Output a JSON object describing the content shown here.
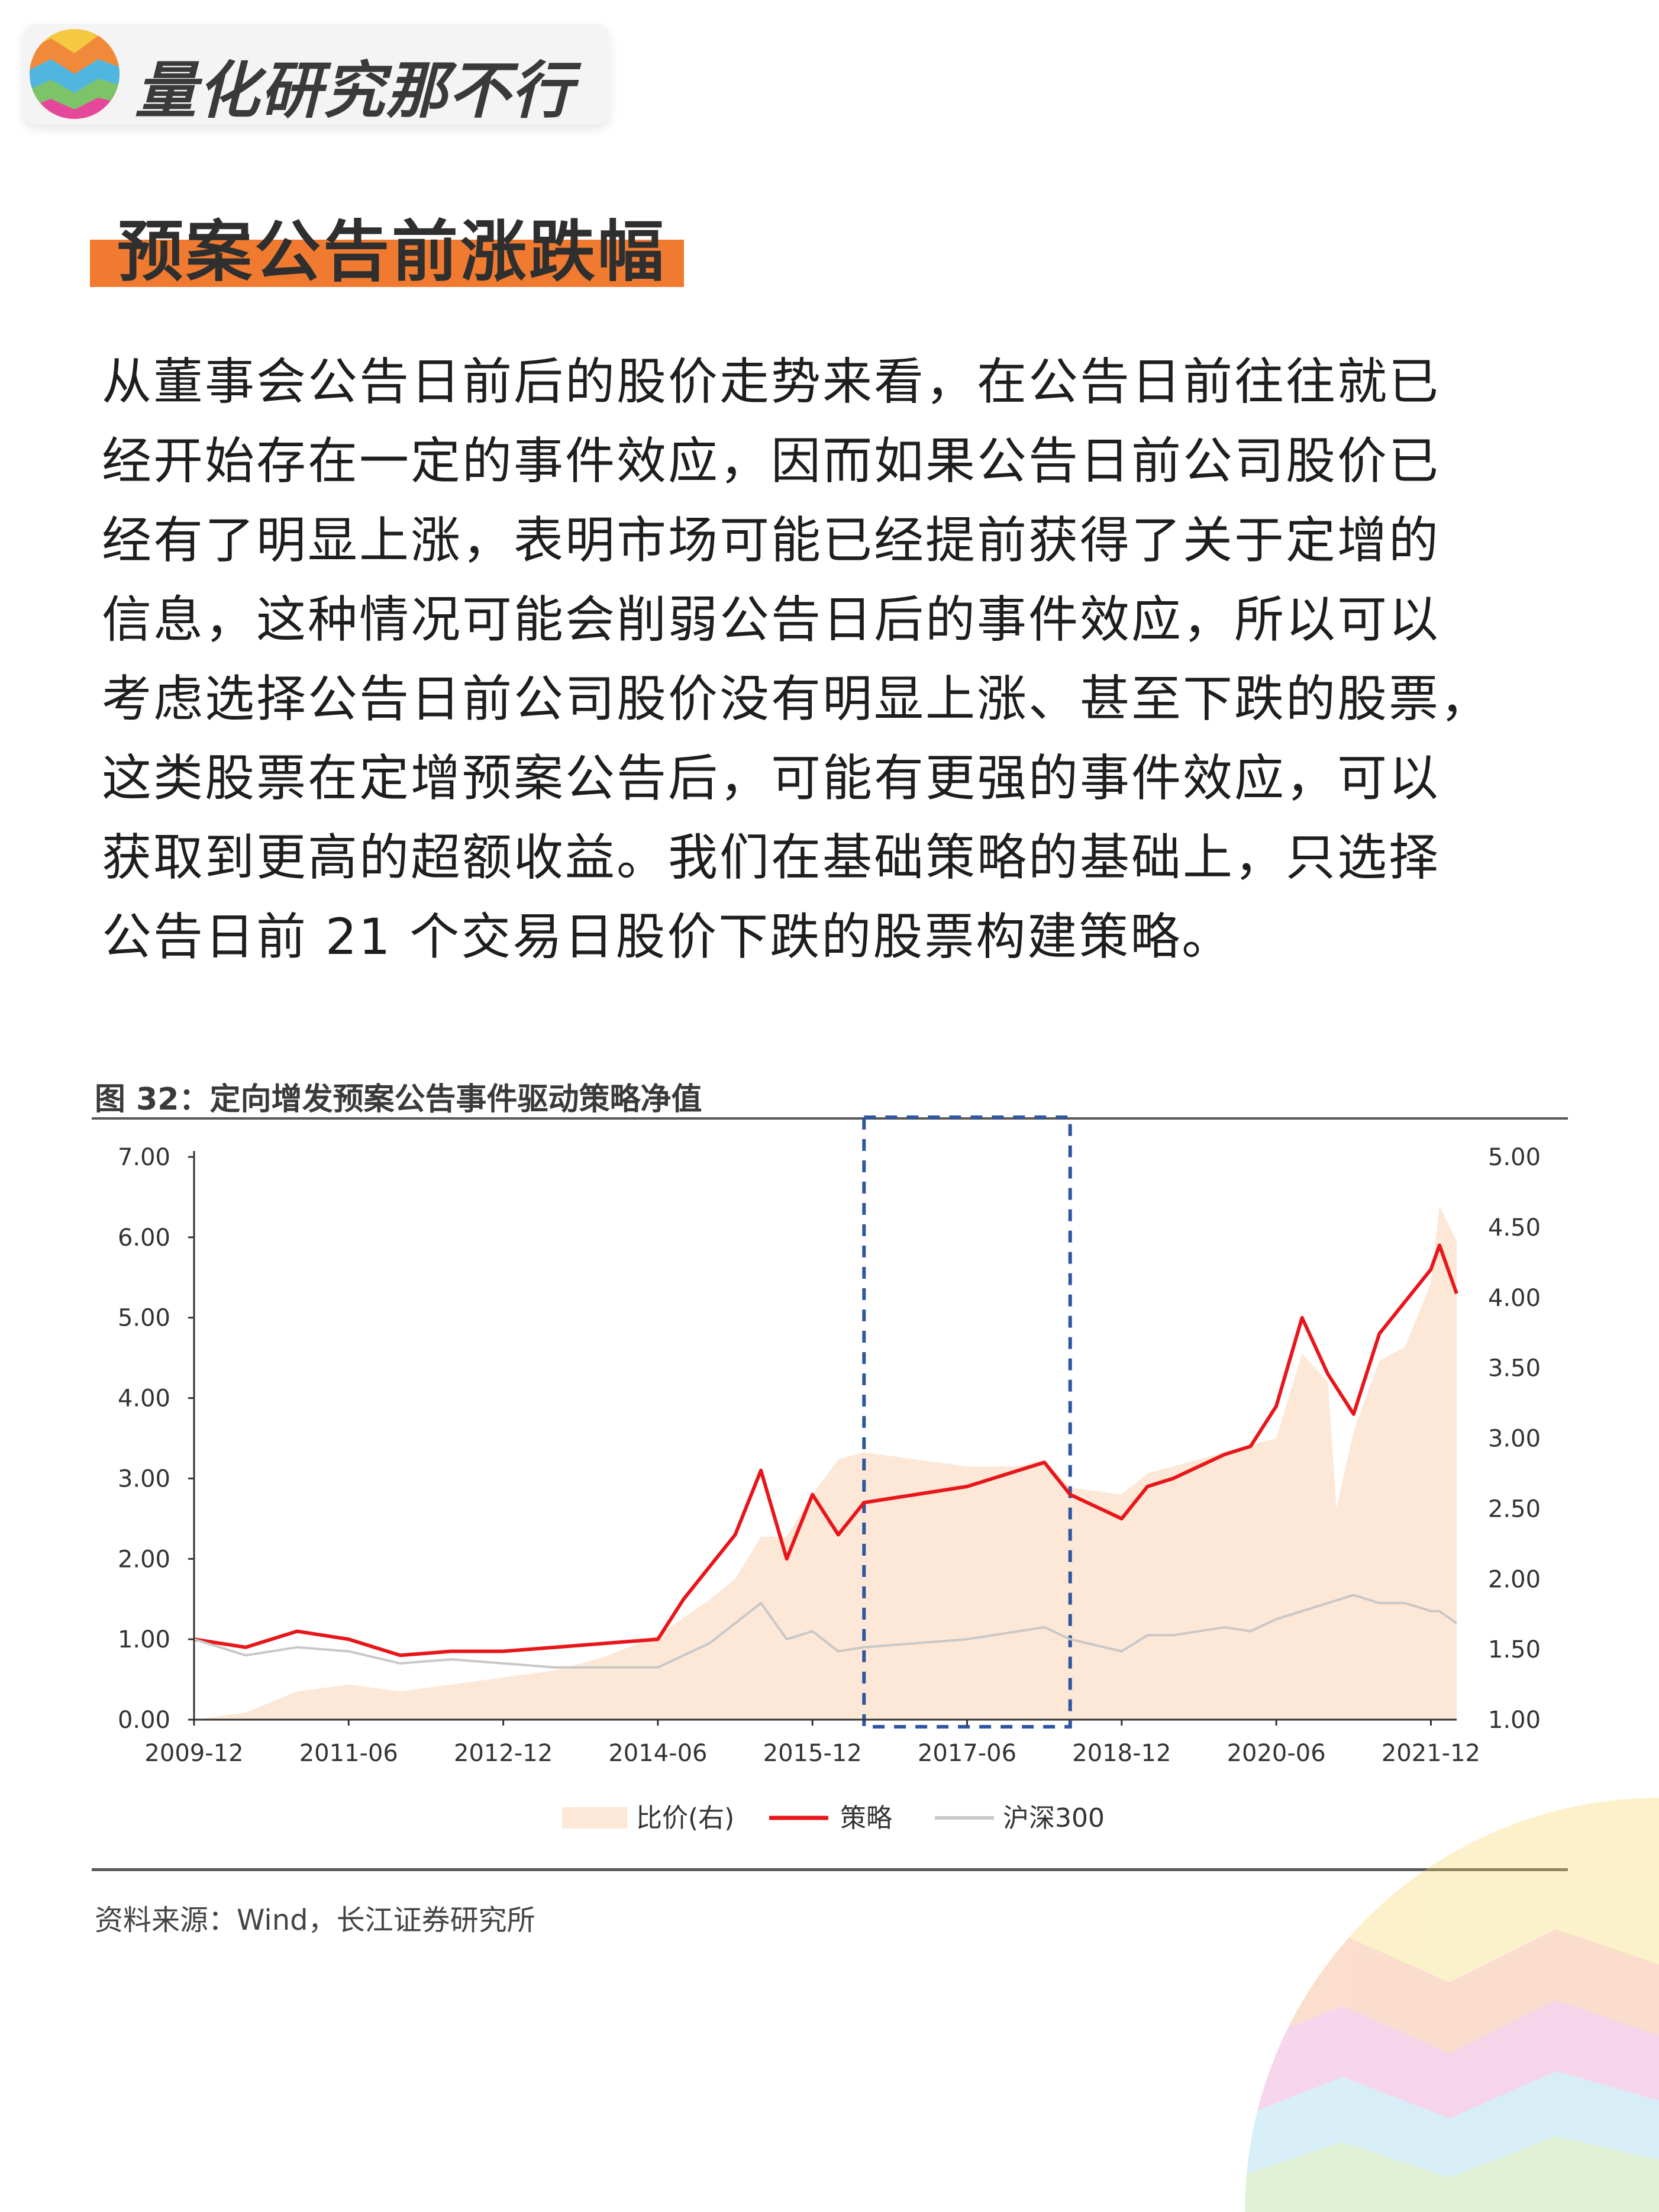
{
  "brand": {
    "name": "量化研究那不行",
    "logo_icon": "rainbow-ball-logo"
  },
  "section": {
    "title": "预案公告前涨跌幅"
  },
  "paragraph": {
    "lines": [
      "从董事会公告日前后的股价走势来看，在公告日前往往就已",
      "经开始存在一定的事件效应，因而如果公告日前公司股价已",
      "经有了明显上涨，表明市场可能已经提前获得了关于定增的",
      "信息，这种情况可能会削弱公告日后的事件效应，所以可以",
      "考虑选择公告日前公司股价没有明显上涨、甚至下跌的股票，",
      "这类股票在定增预案公告后，可能有更强的事件效应，可以",
      "获取到更高的超额收益。我们在基础策略的基础上，只选择",
      "公告日前 21 个交易日股价下跌的股票构建策略。"
    ]
  },
  "figure": {
    "title": "图 32：定向增发预案公告事件驱动策略净值",
    "source": "资料来源：Wind，长江证券研究所"
  },
  "colors": {
    "accent": "#f07a2f",
    "strategy": "#e8161a",
    "hs300": "#c8c8c8",
    "ratio_fill": "#fde7d6",
    "highlight_box": "#2f56a0"
  },
  "chart_data": {
    "type": "line",
    "title": "定向增发预案公告事件驱动策略净值",
    "x_ticks": [
      "2009-12",
      "2011-06",
      "2012-12",
      "2014-06",
      "2015-12",
      "2017-06",
      "2018-12",
      "2020-06",
      "2021-12"
    ],
    "left_axis": {
      "ticks": [
        "0.00",
        "1.00",
        "2.00",
        "3.00",
        "4.00",
        "5.00",
        "6.00",
        "7.00"
      ],
      "range": [
        0,
        7
      ]
    },
    "right_axis": {
      "ticks": [
        "1.00",
        "1.50",
        "2.00",
        "2.50",
        "3.00",
        "3.50",
        "4.00",
        "4.50",
        "5.00"
      ],
      "range": [
        1,
        5
      ]
    },
    "legend": {
      "position": "bottom",
      "items": [
        {
          "key": "ratio",
          "label": "比价(右)"
        },
        {
          "key": "strategy",
          "label": "策略"
        },
        {
          "key": "hs300",
          "label": "沪深300"
        }
      ]
    },
    "highlight_range": [
      "2016-06",
      "2018-06"
    ],
    "series": [
      {
        "name": "策略",
        "axis": "left",
        "type": "line",
        "x": [
          "2009-12",
          "2010-06",
          "2010-12",
          "2011-06",
          "2011-12",
          "2012-06",
          "2012-12",
          "2013-06",
          "2013-12",
          "2014-06",
          "2014-09",
          "2014-12",
          "2015-03",
          "2015-06",
          "2015-09",
          "2015-12",
          "2016-03",
          "2016-06",
          "2016-12",
          "2017-06",
          "2017-12",
          "2018-03",
          "2018-06",
          "2018-12",
          "2019-03",
          "2019-06",
          "2019-12",
          "2020-03",
          "2020-06",
          "2020-09",
          "2020-12",
          "2021-03",
          "2021-06",
          "2021-09",
          "2021-12",
          "2022-01",
          "2022-03"
        ],
        "y": [
          1.0,
          0.9,
          1.1,
          1.0,
          0.8,
          0.85,
          0.85,
          0.9,
          0.95,
          1.0,
          1.5,
          1.9,
          2.3,
          3.1,
          2.0,
          2.8,
          2.3,
          2.7,
          2.8,
          2.9,
          3.1,
          3.2,
          2.8,
          2.5,
          2.9,
          3.0,
          3.3,
          3.4,
          3.9,
          5.0,
          4.3,
          3.8,
          4.8,
          5.2,
          5.6,
          5.9,
          5.3
        ]
      },
      {
        "name": "沪深300",
        "axis": "left",
        "type": "line",
        "x": [
          "2009-12",
          "2010-06",
          "2010-12",
          "2011-06",
          "2011-12",
          "2012-06",
          "2012-12",
          "2013-06",
          "2013-12",
          "2014-06",
          "2014-12",
          "2015-03",
          "2015-06",
          "2015-09",
          "2015-12",
          "2016-03",
          "2016-06",
          "2017-06",
          "2017-12",
          "2018-03",
          "2018-06",
          "2018-12",
          "2019-03",
          "2019-06",
          "2019-12",
          "2020-03",
          "2020-06",
          "2020-09",
          "2020-12",
          "2021-03",
          "2021-06",
          "2021-09",
          "2021-12",
          "2022-01",
          "2022-03"
        ],
        "y": [
          1.0,
          0.8,
          0.9,
          0.85,
          0.7,
          0.75,
          0.7,
          0.65,
          0.65,
          0.65,
          0.95,
          1.2,
          1.45,
          1.0,
          1.1,
          0.85,
          0.9,
          1.0,
          1.1,
          1.15,
          1.0,
          0.85,
          1.05,
          1.05,
          1.15,
          1.1,
          1.25,
          1.35,
          1.45,
          1.55,
          1.45,
          1.45,
          1.35,
          1.35,
          1.2
        ]
      },
      {
        "name": "比价(右)",
        "axis": "right",
        "type": "area",
        "x": [
          "2009-12",
          "2010-06",
          "2010-12",
          "2011-06",
          "2011-12",
          "2012-06",
          "2012-12",
          "2013-06",
          "2013-12",
          "2014-06",
          "2014-12",
          "2015-03",
          "2015-06",
          "2015-09",
          "2015-12",
          "2016-03",
          "2016-06",
          "2016-12",
          "2017-06",
          "2017-12",
          "2018-03",
          "2018-06",
          "2018-12",
          "2019-03",
          "2019-06",
          "2019-12",
          "2020-03",
          "2020-06",
          "2020-09",
          "2020-12",
          "2021-01",
          "2021-03",
          "2021-06",
          "2021-09",
          "2021-12",
          "2022-01",
          "2022-03"
        ],
        "y": [
          1.0,
          1.05,
          1.2,
          1.25,
          1.2,
          1.25,
          1.3,
          1.35,
          1.45,
          1.6,
          1.85,
          2.0,
          2.3,
          2.3,
          2.6,
          2.85,
          2.9,
          2.85,
          2.8,
          2.8,
          2.85,
          2.65,
          2.6,
          2.75,
          2.8,
          2.9,
          2.95,
          3.0,
          3.6,
          3.4,
          2.5,
          3.05,
          3.55,
          3.65,
          4.1,
          4.65,
          4.4
        ]
      }
    ]
  }
}
